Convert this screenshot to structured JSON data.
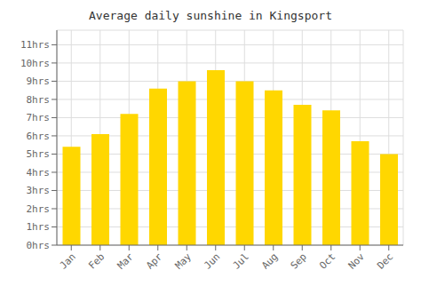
{
  "chart_data": {
    "type": "bar",
    "title": "Average daily sunshine in Kingsport",
    "categories": [
      "Jan",
      "Feb",
      "Mar",
      "Apr",
      "May",
      "Jun",
      "Jul",
      "Aug",
      "Sep",
      "Oct",
      "Nov",
      "Dec"
    ],
    "values": [
      5.4,
      6.1,
      7.2,
      8.6,
      9.0,
      9.6,
      9.0,
      8.5,
      7.7,
      7.4,
      5.7,
      5.0
    ],
    "color": "#FFD700",
    "ylim": [
      0,
      11.8
    ],
    "yticks": [
      {
        "value": 0,
        "label": "0hrs"
      },
      {
        "value": 1,
        "label": "1hrs"
      },
      {
        "value": 2,
        "label": "2hrs"
      },
      {
        "value": 3,
        "label": "3hrs"
      },
      {
        "value": 4,
        "label": "4hrs"
      },
      {
        "value": 5,
        "label": "5hrs"
      },
      {
        "value": 6,
        "label": "6hrs"
      },
      {
        "value": 7,
        "label": "7hrs"
      },
      {
        "value": 8,
        "label": "8hrs"
      },
      {
        "value": 9,
        "label": "9hrs"
      },
      {
        "value": 10,
        "label": "10hrs"
      },
      {
        "value": 11,
        "label": "11hrs"
      }
    ],
    "grid": true
  }
}
